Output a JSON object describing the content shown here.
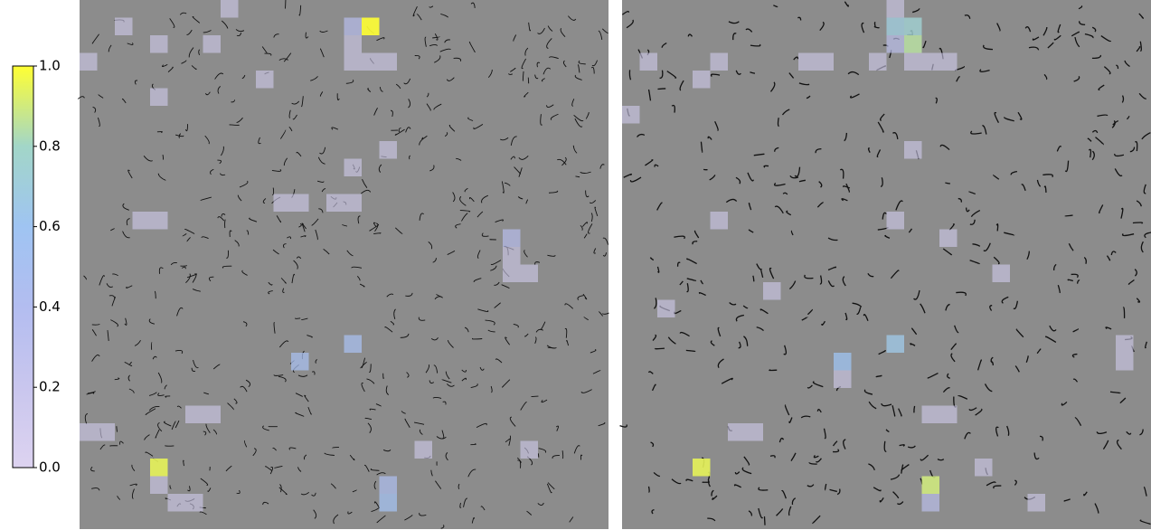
{
  "chart_data": [
    {
      "type": "colorbar",
      "ylim": [
        0,
        1
      ],
      "colors": [
        "#ddd3f0",
        "#c9c6ee",
        "#b3bdf0",
        "#9fc4f2",
        "#a2d6c8",
        "#ffff33"
      ],
      "yticks": [
        {
          "value": 0,
          "label": "0.0"
        },
        {
          "value": 0.2,
          "label": "0.2"
        },
        {
          "value": 0.4,
          "label": "0.4"
        },
        {
          "value": 0.6,
          "label": "0.6"
        },
        {
          "value": 0.8,
          "label": "0.8"
        },
        {
          "value": 1,
          "label": "1.0"
        }
      ]
    },
    {
      "type": "heatmap",
      "x": [
        8,
        2,
        4,
        7,
        0,
        15,
        16,
        17,
        10,
        4,
        16,
        15,
        15,
        3,
        4,
        11,
        12,
        14,
        15,
        17,
        15,
        24,
        24,
        25,
        24,
        15,
        12,
        4,
        4,
        5,
        6,
        17,
        17,
        0,
        1,
        6,
        7,
        19,
        25
      ],
      "y": [
        0,
        1,
        2,
        2,
        3,
        3,
        3,
        3,
        4,
        5,
        1,
        1,
        2,
        12,
        12,
        11,
        11,
        11,
        11,
        8,
        9,
        13,
        14,
        15,
        15,
        19,
        20,
        26,
        27,
        28,
        28,
        27,
        28,
        24,
        24,
        23,
        23,
        25,
        25
      ],
      "values": [
        0.1,
        0.1,
        0.1,
        0.1,
        0.1,
        0.1,
        0.1,
        0.1,
        0.1,
        0.1,
        1.0,
        0.35,
        0.1,
        0.1,
        0.1,
        0.1,
        0.1,
        0.1,
        0.1,
        0.1,
        0.1,
        0.35,
        0.1,
        0.1,
        0.1,
        0.5,
        0.5,
        0.95,
        0.1,
        0.1,
        0.1,
        0.45,
        0.55,
        0.1,
        0.1,
        0.1,
        0.1,
        0.1,
        0.1
      ]
    },
    {
      "type": "heatmap",
      "x": [
        15,
        16,
        15,
        16,
        15,
        14,
        16,
        17,
        18,
        10,
        11,
        1,
        5,
        4,
        0,
        15,
        12,
        4,
        17,
        17,
        16,
        5,
        15,
        18,
        21,
        8,
        2,
        12,
        6,
        7,
        17,
        18,
        28,
        28,
        20,
        23
      ],
      "y": [
        1,
        1,
        2,
        2,
        0,
        3,
        3,
        3,
        3,
        3,
        3,
        3,
        3,
        4,
        6,
        19,
        20,
        26,
        27,
        28,
        8,
        12,
        12,
        13,
        15,
        16,
        17,
        21,
        24,
        24,
        23,
        23,
        19,
        20,
        26,
        28
      ],
      "values": [
        0.7,
        0.75,
        0.3,
        0.85,
        0.1,
        0.1,
        0.1,
        0.1,
        0.1,
        0.1,
        0.1,
        0.1,
        0.1,
        0.1,
        0.1,
        0.65,
        0.6,
        0.95,
        0.9,
        0.3,
        0.1,
        0.1,
        0.1,
        0.1,
        0.1,
        0.1,
        0.1,
        0.1,
        0.1,
        0.1,
        0.1,
        0.1,
        0.1,
        0.1,
        0.1,
        0.1
      ]
    }
  ]
}
